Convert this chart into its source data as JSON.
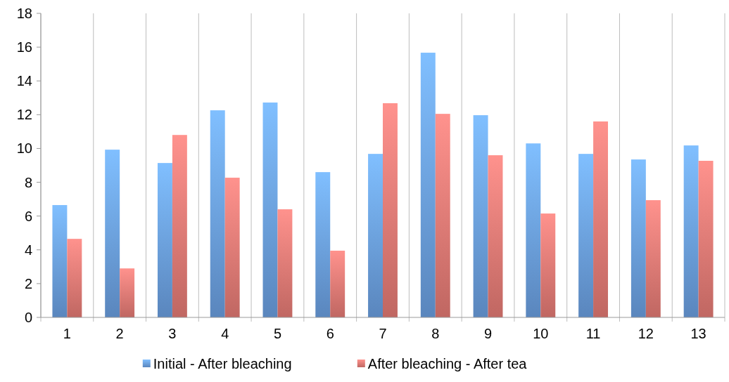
{
  "chart_data": {
    "type": "bar",
    "categories": [
      "1",
      "2",
      "3",
      "4",
      "5",
      "6",
      "7",
      "8",
      "9",
      "10",
      "11",
      "12",
      "13"
    ],
    "series": [
      {
        "name": "Initial - After bleaching",
        "color": "#6fa6ea",
        "values": [
          6.65,
          9.93,
          9.14,
          12.26,
          12.72,
          8.6,
          9.68,
          15.67,
          11.97,
          10.3,
          9.68,
          9.35,
          10.18
        ]
      },
      {
        "name": "After bleaching - After tea",
        "color": "#ee7f7a",
        "values": [
          4.65,
          2.9,
          10.8,
          8.27,
          6.4,
          3.95,
          12.68,
          12.05,
          9.6,
          6.15,
          11.6,
          6.94,
          9.27
        ]
      }
    ],
    "ylim": [
      0,
      18
    ],
    "yticks": [
      0,
      2,
      4,
      6,
      8,
      10,
      12,
      14,
      16,
      18
    ],
    "grid": "x",
    "legend": "bottom"
  }
}
